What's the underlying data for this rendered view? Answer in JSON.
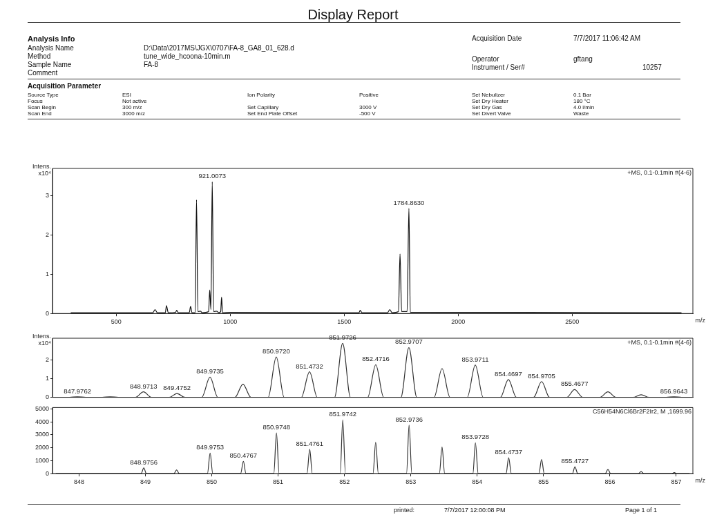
{
  "chart_data": [
    {
      "type": "other",
      "title": "Display Report",
      "annotations": [
        "Analysis Info",
        "Acquisition Date",
        "7/7/2017 11:06:42 AM",
        "Analysis Name",
        "D:\\Data\\2017MS\\JGX\\0707\\FA-8_GA8_01_628.d",
        "Method",
        "tune_wide_hcoona-10min.m",
        "Operator",
        "gftang",
        "Sample Name",
        "FA-8",
        "Instrument / Ser#",
        "10257",
        "Comment",
        "Acquisition Parameter",
        "Source Type",
        "ESI",
        "Ion Polarity",
        "Positive",
        "Set Nebulizer",
        "0.1 Bar",
        "Focus",
        "Not active",
        "Set Dry Heater",
        "180 °C",
        "Scan Begin",
        "300 m/z",
        "Set Capillary",
        "3000 V",
        "Set Dry Gas",
        "4.0 l/min",
        "Scan End",
        "3000 m/z",
        "Set End Plate Offset",
        "-500 V",
        "Set Divert Valve",
        "Waste"
      ]
    },
    {
      "type": "line",
      "xlabel": "m/z",
      "ylabel": "Intens. x10⁴",
      "xlim": [
        220,
        3030
      ],
      "ylim": [
        0,
        3.7
      ],
      "xticks": [
        500,
        1000,
        1500,
        2000,
        2500
      ],
      "yticks": [
        0,
        1,
        2,
        3
      ],
      "grid": false,
      "series": [
        {
          "color": "#111111",
          "x": [
            300,
            660,
            670,
            680,
            715,
            720,
            728,
            760,
            765,
            772,
            820,
            826,
            832,
            846,
            852,
            858,
            870,
            876,
            905,
            910,
            915,
            921,
            927,
            940,
            950,
            958,
            962,
            966,
            1000,
            1500,
            1565,
            1570,
            1578,
            1690,
            1700,
            1710,
            1738,
            1745,
            1752,
            1776,
            1784,
            1790,
            1830,
            2980
          ],
          "values": [
            0.02,
            0.02,
            0.1,
            0.02,
            0.02,
            0.2,
            0.02,
            0.03,
            0.08,
            0.02,
            0.02,
            0.18,
            0.02,
            0.02,
            2.9,
            0.05,
            0.06,
            0.02,
            0.05,
            0.6,
            0.1,
            3.36,
            0.05,
            0.06,
            0.02,
            0.05,
            0.42,
            0.02,
            0.03,
            0.02,
            0.02,
            0.08,
            0.02,
            0.02,
            0.1,
            0.02,
            0.05,
            1.52,
            0.05,
            0.05,
            2.68,
            0.03,
            0.03,
            0.02
          ]
        }
      ],
      "annotations": [
        "+MS, 0.1-0.1min #(4-6)",
        {
          "text": "921.0073",
          "x": 921,
          "y": 3.36
        },
        {
          "text": "1784.8630",
          "x": 1784,
          "y": 2.68
        }
      ]
    },
    {
      "type": "line",
      "ylabel": "Intens. x10⁴",
      "xlim": [
        847.6,
        857.25
      ],
      "ylim": [
        0,
        3.15
      ],
      "xticks": [
        848,
        849,
        850,
        851,
        852,
        853,
        854,
        855,
        856,
        857
      ],
      "yticks": [
        0,
        1,
        2
      ],
      "grid": false,
      "tick_labels": "y",
      "series": [
        {
          "color": "#333333",
          "x": [
            847.65,
            847.86,
            847.9762,
            848.1,
            848.35,
            848.47,
            848.59,
            848.85,
            848.9713,
            849.09,
            849.36,
            849.4752,
            849.6,
            849.85,
            849.9735,
            850.09,
            850.35,
            850.47,
            850.59,
            850.85,
            850.972,
            851.09,
            851.35,
            851.4732,
            851.59,
            851.85,
            851.9726,
            852.09,
            852.35,
            852.4716,
            852.59,
            852.85,
            852.9707,
            853.09,
            853.35,
            853.47,
            853.59,
            853.85,
            853.9711,
            854.09,
            854.35,
            854.4697,
            854.59,
            854.85,
            854.9705,
            855.09,
            855.35,
            855.4677,
            855.59,
            855.85,
            855.97,
            856.09,
            856.35,
            856.47,
            856.59,
            856.85,
            856.9643,
            857.08,
            857.2
          ],
          "values": [
            0,
            0,
            0.03,
            0,
            0,
            0.03,
            0,
            0,
            0.29,
            0,
            0,
            0.2,
            0,
            0,
            1.08,
            0,
            0,
            0.7,
            0,
            0,
            2.15,
            0,
            0,
            1.36,
            0,
            0,
            2.88,
            0,
            0,
            1.74,
            0,
            0,
            2.65,
            0,
            0,
            1.53,
            0,
            0,
            1.72,
            0,
            0,
            0.95,
            0,
            0,
            0.84,
            0,
            0,
            0.41,
            0,
            0,
            0.29,
            0,
            0,
            0.14,
            0,
            0,
            0.03,
            0,
            0
          ]
        }
      ],
      "annotations": [
        "+MS, 0.1-0.1min #(4-6)",
        {
          "text": "847.9762",
          "x": 847.9762,
          "y": 0.03
        },
        {
          "text": "848.9713",
          "x": 848.9713,
          "y": 0.29
        },
        {
          "text": "849.4752",
          "x": 849.4752,
          "y": 0.2
        },
        {
          "text": "849.9735",
          "x": 849.9735,
          "y": 1.08
        },
        {
          "text": "850.9720",
          "x": 850.972,
          "y": 2.15
        },
        {
          "text": "851.4732",
          "x": 851.4732,
          "y": 1.36
        },
        {
          "text": "851.9726",
          "x": 851.9726,
          "y": 2.88
        },
        {
          "text": "852.4716",
          "x": 852.4716,
          "y": 1.74
        },
        {
          "text": "852.9707",
          "x": 852.9707,
          "y": 2.65
        },
        {
          "text": "853.9711",
          "x": 853.9711,
          "y": 1.72
        },
        {
          "text": "854.4697",
          "x": 854.4697,
          "y": 0.95
        },
        {
          "text": "854.9705",
          "x": 854.9705,
          "y": 0.84
        },
        {
          "text": "855.4677",
          "x": 855.4677,
          "y": 0.41
        },
        {
          "text": "856.9643",
          "x": 856.9643,
          "y": 0.03
        }
      ]
    },
    {
      "type": "line",
      "xlabel": "m/z",
      "xlim": [
        847.6,
        857.25
      ],
      "ylim": [
        0,
        5100
      ],
      "xticks": [
        848,
        849,
        850,
        851,
        852,
        853,
        854,
        855,
        856,
        857
      ],
      "yticks": [
        0,
        1000,
        2000,
        3000,
        4000,
        5000
      ],
      "grid": false,
      "series": [
        {
          "color": "#333333",
          "x": [
            847.65,
            848.935,
            848.9756,
            849.015,
            849.43,
            849.47,
            849.51,
            849.935,
            849.9753,
            850.015,
            850.435,
            850.4767,
            850.515,
            850.935,
            850.9748,
            851.015,
            851.435,
            851.4761,
            851.515,
            851.935,
            851.9742,
            852.015,
            852.43,
            852.47,
            852.51,
            852.935,
            852.9736,
            853.015,
            853.43,
            853.47,
            853.51,
            853.935,
            853.9728,
            854.015,
            854.435,
            854.4737,
            854.515,
            854.93,
            854.97,
            855.01,
            855.435,
            855.4727,
            855.515,
            855.93,
            855.97,
            856.01,
            856.43,
            856.47,
            856.51,
            856.93,
            856.97,
            857.01,
            857.2
          ],
          "values": [
            0,
            0,
            440,
            0,
            0,
            280,
            0,
            0,
            1590,
            0,
            0,
            950,
            0,
            0,
            3150,
            0,
            0,
            1880,
            0,
            0,
            4150,
            0,
            0,
            2410,
            0,
            0,
            3740,
            0,
            0,
            2050,
            0,
            0,
            2380,
            0,
            0,
            1230,
            0,
            0,
            1100,
            0,
            0,
            530,
            0,
            0,
            330,
            0,
            0,
            160,
            0,
            0,
            80,
            0,
            0
          ]
        }
      ],
      "annotations": [
        "C56H54N6Cl6Br2F2Ir2, M ,1699.96",
        {
          "text": "848.9756",
          "x": 848.9756,
          "y": 440
        },
        {
          "text": "849.9753",
          "x": 849.9753,
          "y": 1590
        },
        {
          "text": "850.4767",
          "x": 850.4767,
          "y": 950
        },
        {
          "text": "850.9748",
          "x": 850.9748,
          "y": 3150
        },
        {
          "text": "851.4761",
          "x": 851.4761,
          "y": 1880
        },
        {
          "text": "851.9742",
          "x": 851.9742,
          "y": 4150
        },
        {
          "text": "852.9736",
          "x": 852.9736,
          "y": 3740
        },
        {
          "text": "853.9728",
          "x": 853.9728,
          "y": 2380
        },
        {
          "text": "854.4737",
          "x": 854.4737,
          "y": 1230
        },
        {
          "text": "855.4727",
          "x": 855.4727,
          "y": 530
        }
      ]
    },
    {
      "type": "other",
      "annotations": [
        "printed:",
        "7/7/2017 12:00:08 PM",
        "Page 1 of 1"
      ]
    }
  ]
}
